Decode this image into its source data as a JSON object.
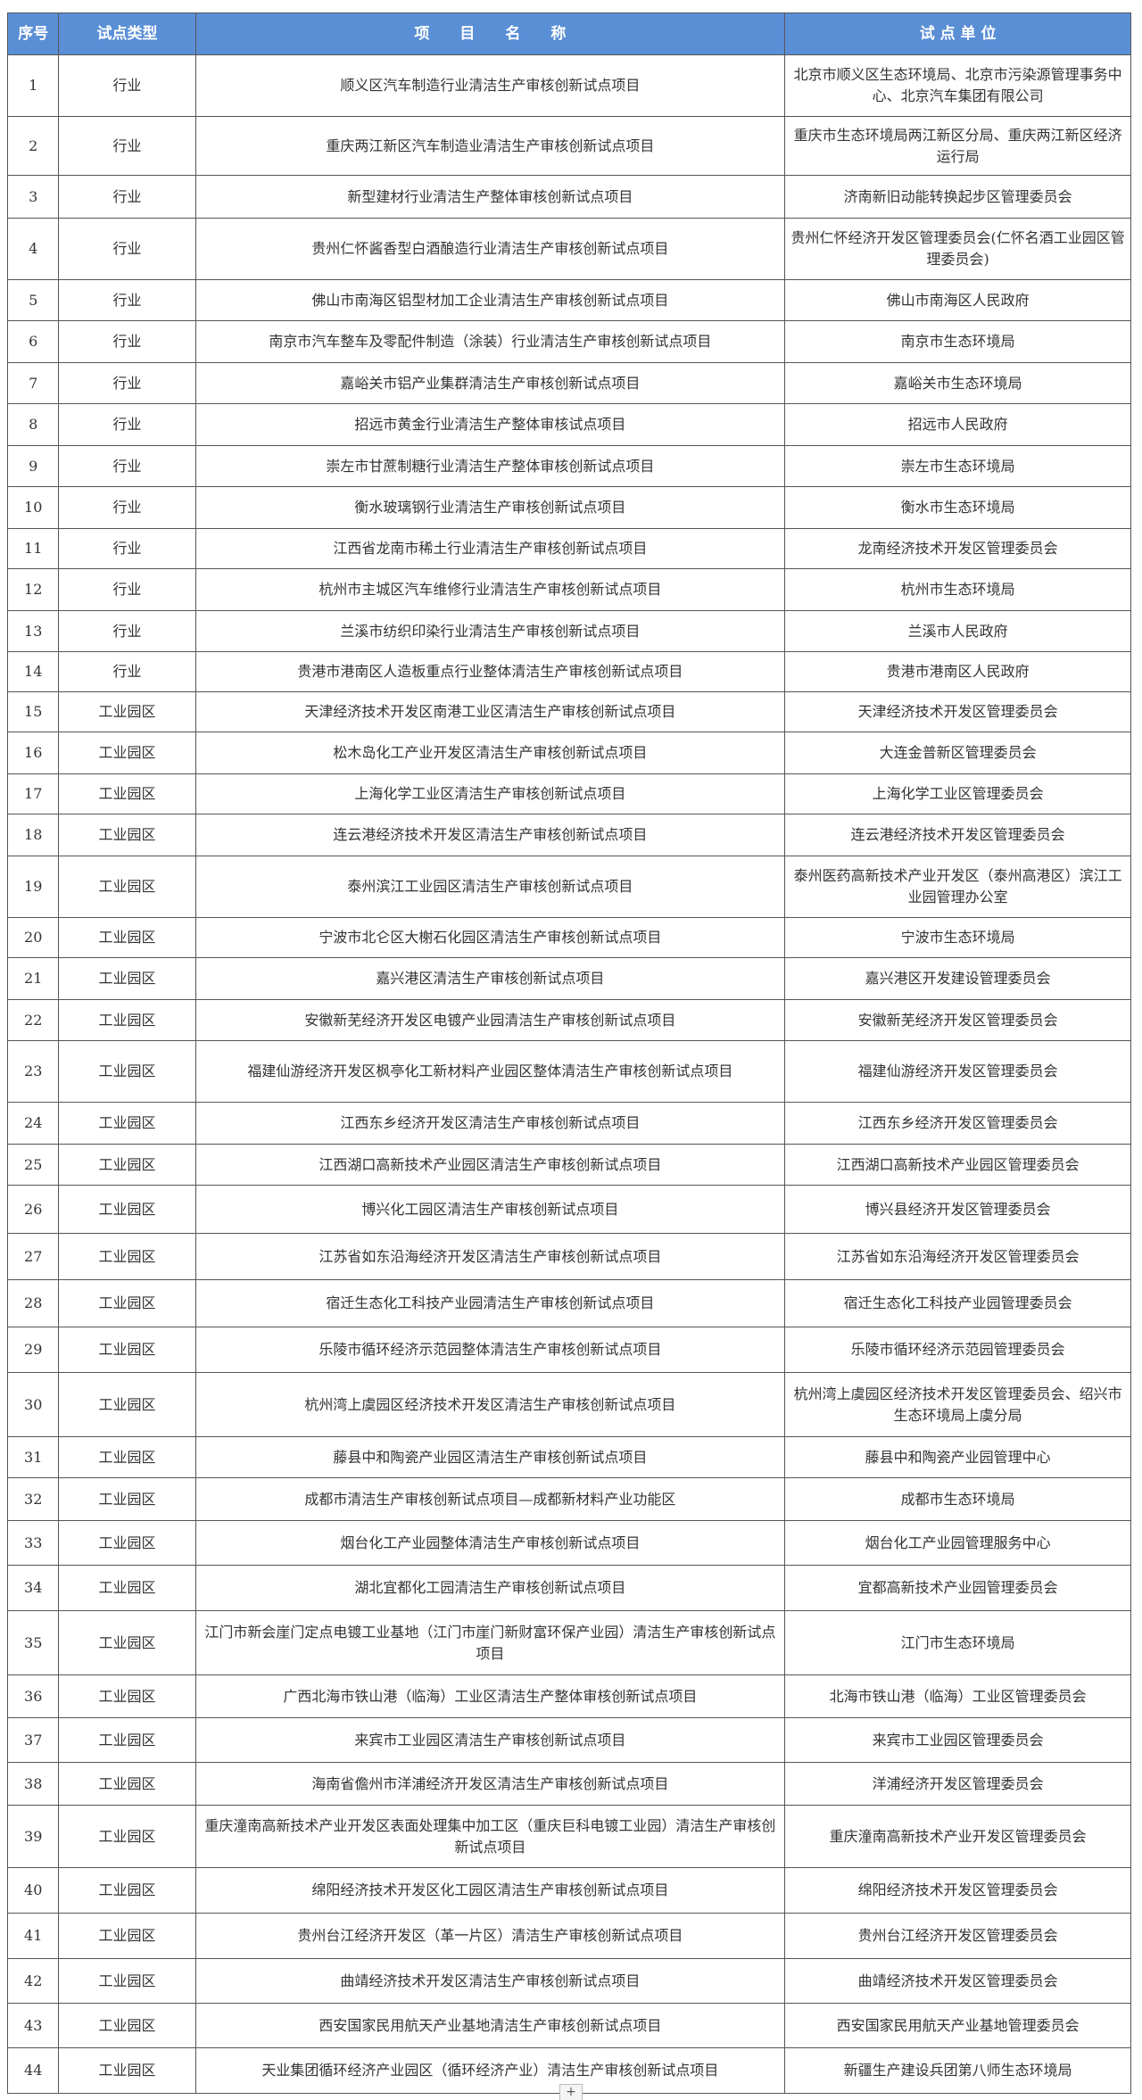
{
  "table": {
    "headers": [
      "序号",
      "试点类型",
      "项　　目　　名　　称",
      "试 点 单 位"
    ],
    "rows": [
      [
        "1",
        "行业",
        "顺义区汽车制造行业清洁生产审核创新试点项目",
        "北京市顺义区生态环境局、北京市污染源管理事务中心、北京汽车集团有限公司"
      ],
      [
        "2",
        "行业",
        "重庆两江新区汽车制造业清洁生产审核创新试点项目",
        "重庆市生态环境局两江新区分局、重庆两江新区经济运行局"
      ],
      [
        "3",
        "行业",
        "新型建材行业清洁生产整体审核创新试点项目",
        "济南新旧动能转换起步区管理委员会"
      ],
      [
        "4",
        "行业",
        "贵州仁怀酱香型白酒酿造行业清洁生产审核创新试点项目",
        "贵州仁怀经济开发区管理委员会(仁怀名酒工业园区管理委员会)"
      ],
      [
        "5",
        "行业",
        "佛山市南海区铝型材加工企业清洁生产审核创新试点项目",
        "佛山市南海区人民政府"
      ],
      [
        "6",
        "行业",
        "南京市汽车整车及零配件制造（涂装）行业清洁生产审核创新试点项目",
        "南京市生态环境局"
      ],
      [
        "7",
        "行业",
        "嘉峪关市铝产业集群清洁生产审核创新试点项目",
        "嘉峪关市生态环境局"
      ],
      [
        "8",
        "行业",
        "招远市黄金行业清洁生产整体审核试点项目",
        "招远市人民政府"
      ],
      [
        "9",
        "行业",
        "崇左市甘蔗制糖行业清洁生产整体审核创新试点项目",
        "崇左市生态环境局"
      ],
      [
        "10",
        "行业",
        "衡水玻璃钢行业清洁生产审核创新试点项目",
        "衡水市生态环境局"
      ],
      [
        "11",
        "行业",
        "江西省龙南市稀土行业清洁生产审核创新试点项目",
        "龙南经济技术开发区管理委员会"
      ],
      [
        "12",
        "行业",
        "杭州市主城区汽车维修行业清洁生产审核创新试点项目",
        "杭州市生态环境局"
      ],
      [
        "13",
        "行业",
        "兰溪市纺织印染行业清洁生产审核创新试点项目",
        "兰溪市人民政府"
      ],
      [
        "14",
        "行业",
        "贵港市港南区人造板重点行业整体清洁生产审核创新试点项目",
        "贵港市港南区人民政府"
      ],
      [
        "15",
        "工业园区",
        "天津经济技术开发区南港工业区清洁生产审核创新试点项目",
        "天津经济技术开发区管理委员会"
      ],
      [
        "16",
        "工业园区",
        "松木岛化工产业开发区清洁生产审核创新试点项目",
        "大连金普新区管理委员会"
      ],
      [
        "17",
        "工业园区",
        "上海化学工业区清洁生产审核创新试点项目",
        "上海化学工业区管理委员会"
      ],
      [
        "18",
        "工业园区",
        "连云港经济技术开发区清洁生产审核创新试点项目",
        "连云港经济技术开发区管理委员会"
      ],
      [
        "19",
        "工业园区",
        "泰州滨江工业园区清洁生产审核创新试点项目",
        "泰州医药高新技术产业开发区（泰州高港区）滨江工业园管理办公室"
      ],
      [
        "20",
        "工业园区",
        "宁波市北仑区大榭石化园区清洁生产审核创新试点项目",
        "宁波市生态环境局"
      ],
      [
        "21",
        "工业园区",
        "嘉兴港区清洁生产审核创新试点项目",
        "嘉兴港区开发建设管理委员会"
      ],
      [
        "22",
        "工业园区",
        "安徽新芜经济开发区电镀产业园清洁生产审核创新试点项目",
        "安徽新芜经济开发区管理委员会"
      ],
      [
        "23",
        "工业园区",
        "福建仙游经济开发区枫亭化工新材料产业园区整体清洁生产审核创新试点项目",
        "福建仙游经济开发区管理委员会"
      ],
      [
        "24",
        "工业园区",
        "江西东乡经济开发区清洁生产审核创新试点项目",
        "江西东乡经济开发区管理委员会"
      ],
      [
        "25",
        "工业园区",
        "江西湖口高新技术产业园区清洁生产审核创新试点项目",
        "江西湖口高新技术产业园区管理委员会"
      ],
      [
        "26",
        "工业园区",
        "博兴化工园区清洁生产审核创新试点项目",
        "博兴县经济开发区管理委员会"
      ],
      [
        "27",
        "工业园区",
        "江苏省如东沿海经济开发区清洁生产审核创新试点项目",
        "江苏省如东沿海经济开发区管理委员会"
      ],
      [
        "28",
        "工业园区",
        "宿迁生态化工科技产业园清洁生产审核创新试点项目",
        "宿迁生态化工科技产业园管理委员会"
      ],
      [
        "29",
        "工业园区",
        "乐陵市循环经济示范园整体清洁生产审核创新试点项目",
        "乐陵市循环经济示范园管理委员会"
      ],
      [
        "30",
        "工业园区",
        "杭州湾上虞园区经济技术开发区清洁生产审核创新试点项目",
        "杭州湾上虞园区经济技术开发区管理委员会、绍兴市生态环境局上虞分局"
      ],
      [
        "31",
        "工业园区",
        "藤县中和陶瓷产业园区清洁生产审核创新试点项目",
        "藤县中和陶瓷产业园管理中心"
      ],
      [
        "32",
        "工业园区",
        "成都市清洁生产审核创新试点项目—成都新材料产业功能区",
        "成都市生态环境局"
      ],
      [
        "33",
        "工业园区",
        "烟台化工产业园整体清洁生产审核创新试点项目",
        "烟台化工产业园管理服务中心"
      ],
      [
        "34",
        "工业园区",
        "湖北宜都化工园清洁生产审核创新试点项目",
        "宜都高新技术产业园管理委员会"
      ],
      [
        "35",
        "工业园区",
        "江门市新会崖门定点电镀工业基地（江门市崖门新财富环保产业园）清洁生产审核创新试点项目",
        "江门市生态环境局"
      ],
      [
        "36",
        "工业园区",
        "广西北海市铁山港（临海）工业区清洁生产整体审核创新试点项目",
        "北海市铁山港（临海）工业区管理委员会"
      ],
      [
        "37",
        "工业园区",
        "来宾市工业园区清洁生产审核创新试点项目",
        "来宾市工业园区管理委员会"
      ],
      [
        "38",
        "工业园区",
        "海南省儋州市洋浦经济开发区清洁生产审核创新试点项目",
        "洋浦经济开发区管理委员会"
      ],
      [
        "39",
        "工业园区",
        "重庆潼南高新技术产业开发区表面处理集中加工区（重庆巨科电镀工业园）清洁生产审核创新试点项目",
        "重庆潼南高新技术产业开发区管理委员会"
      ],
      [
        "40",
        "工业园区",
        "绵阳经济技术开发区化工园区清洁生产审核创新试点项目",
        "绵阳经济技术开发区管理委员会"
      ],
      [
        "41",
        "工业园区",
        "贵州台江经济开发区（革一片区）清洁生产审核创新试点项目",
        "贵州台江经济开发区管理委员会"
      ],
      [
        "42",
        "工业园区",
        "曲靖经济技术开发区清洁生产审核创新试点项目",
        "曲靖经济技术开发区管理委员会"
      ],
      [
        "43",
        "工业园区",
        "西安国家民用航天产业基地清洁生产审核创新试点项目",
        "西安国家民用航天产业基地管理委员会"
      ],
      [
        "44",
        "工业园区",
        "天业集团循环经济产业园区（循环经济产业）清洁生产审核创新试点项目",
        "新疆生产建设兵团第八师生态环境局"
      ]
    ]
  },
  "sheet_add_button": {
    "label": "+"
  },
  "colors": {
    "header_bg": "#5a8fd6",
    "header_text": "#ffffff",
    "border": "#555555"
  }
}
